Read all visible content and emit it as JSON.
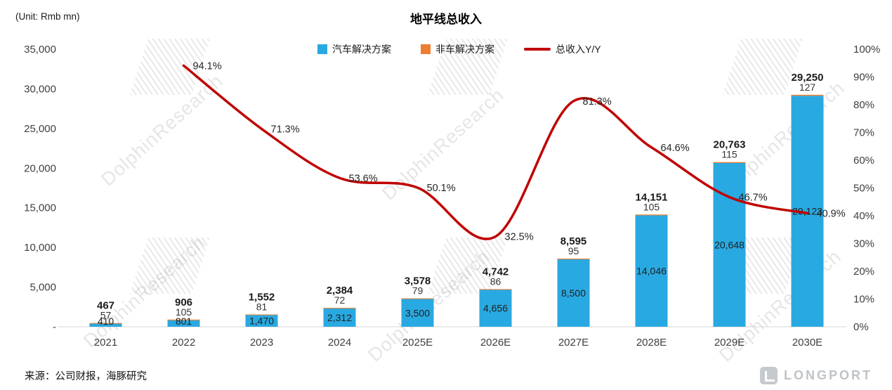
{
  "header": {
    "unit_label": "(Unit: Rmb mn)",
    "title": "地平线总收入"
  },
  "legend": [
    {
      "label": "汽车解决方案",
      "color": "#29A9E1",
      "type": "square"
    },
    {
      "label": "非车解决方案",
      "color": "#ED7D31",
      "type": "square"
    },
    {
      "label": "总收入Y/Y",
      "color": "#C00000",
      "type": "line"
    }
  ],
  "footer": {
    "source": "来源：公司财报，海豚研究"
  },
  "watermark": {
    "text": "DolphinResearch"
  },
  "logo": {
    "text": "LONGPORT"
  },
  "chart_data": {
    "type": "bar+line",
    "title": "地平线总收入",
    "unit": "Rmb mn",
    "categories": [
      "2021",
      "2022",
      "2023",
      "2024",
      "2025E",
      "2026E",
      "2027E",
      "2028E",
      "2029E",
      "2030E"
    ],
    "series": [
      {
        "name": "汽车解决方案",
        "type": "bar",
        "axis": "left",
        "color": "#29A9E1",
        "values": [
          410,
          801,
          1470,
          2312,
          3500,
          4656,
          8500,
          14046,
          20648,
          29123
        ],
        "labels": [
          "410",
          "801",
          "1,470",
          "2,312",
          "3,500",
          "4,656",
          "8,500",
          "14,046",
          "20,648",
          "29,123"
        ]
      },
      {
        "name": "非车解决方案",
        "type": "bar",
        "axis": "left",
        "color": "#ED7D31",
        "values": [
          57,
          105,
          81,
          72,
          79,
          86,
          95,
          105,
          115,
          127
        ],
        "labels": [
          "57",
          "105",
          "81",
          "72",
          "79",
          "86",
          "95",
          "105",
          "115",
          "127"
        ]
      },
      {
        "name": "总收入Y/Y",
        "type": "line",
        "axis": "right",
        "color": "#C00000",
        "values": [
          null,
          94.1,
          71.3,
          53.6,
          50.1,
          32.5,
          81.3,
          64.6,
          46.7,
          40.9
        ],
        "labels": [
          null,
          "94.1%",
          "71.3%",
          "53.6%",
          "50.1%",
          "32.5%",
          "81.3%",
          "64.6%",
          "46.7%",
          "40.9%"
        ]
      }
    ],
    "totals": {
      "values": [
        467,
        906,
        1552,
        2384,
        3578,
        4742,
        8595,
        14151,
        20763,
        29250
      ],
      "labels": [
        "467",
        "906",
        "1,552",
        "2,384",
        "3,578",
        "4,742",
        "8,595",
        "14,151",
        "20,763",
        "29,250"
      ]
    },
    "left_axis": {
      "min": 0,
      "max": 35000,
      "step": 5000,
      "tick_labels": [
        "-",
        "5,000",
        "10,000",
        "15,000",
        "20,000",
        "25,000",
        "30,000",
        "35,000"
      ]
    },
    "right_axis": {
      "min": 0,
      "max": 100,
      "step": 10,
      "tick_labels": [
        "0%",
        "10%",
        "20%",
        "30%",
        "40%",
        "50%",
        "60%",
        "70%",
        "80%",
        "90%",
        "100%"
      ]
    },
    "grid": false,
    "legend_position": "top"
  }
}
